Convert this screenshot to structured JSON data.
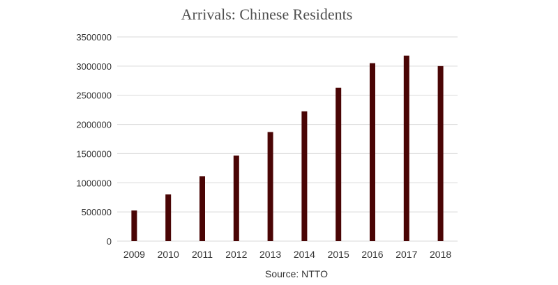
{
  "chart_data": {
    "type": "bar",
    "title": "Arrivals: Chinese Residents",
    "categories": [
      "2009",
      "2010",
      "2011",
      "2012",
      "2013",
      "2014",
      "2015",
      "2016",
      "2017",
      "2018"
    ],
    "series": [
      {
        "values": [
          525000,
          800000,
          1110000,
          1465000,
          1870000,
          2225000,
          2630000,
          3050000,
          3180000,
          3000000
        ]
      }
    ],
    "ylim": [
      0,
      3500000
    ],
    "yticks": [
      0,
      500000,
      1000000,
      1500000,
      2000000,
      2500000,
      3000000,
      3500000
    ],
    "grid": true,
    "bar_color": "#4a0505",
    "grid_color": "#d9d9d9"
  },
  "source": "Source: NTTO"
}
